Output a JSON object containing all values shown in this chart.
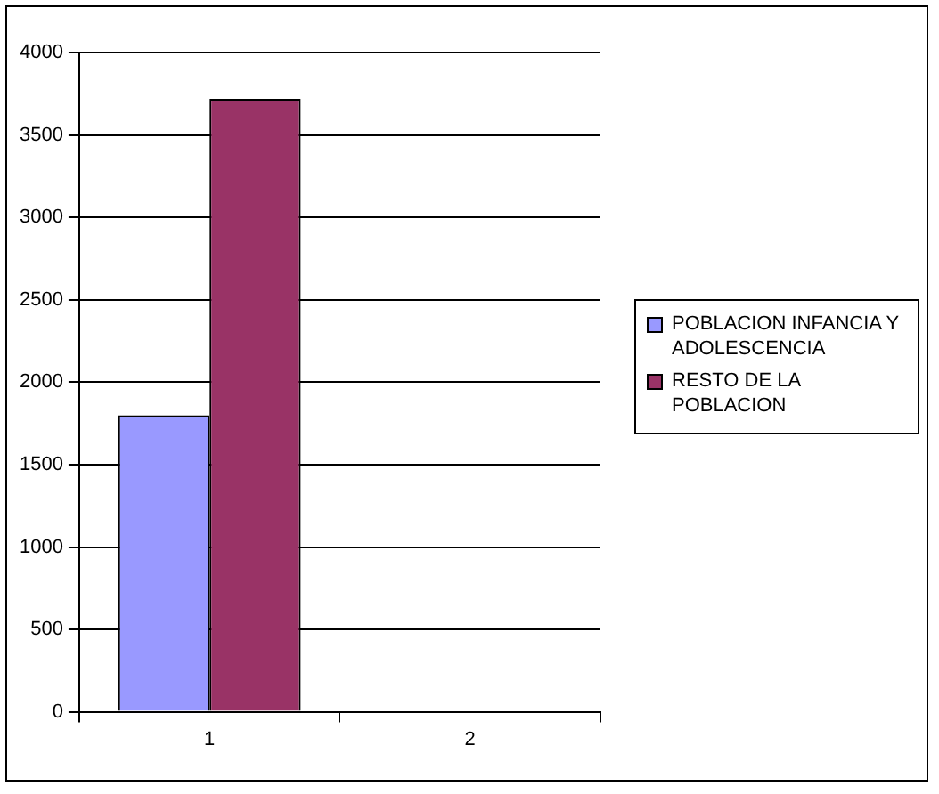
{
  "chart_data": {
    "type": "bar",
    "categories": [
      "1",
      "2"
    ],
    "series": [
      {
        "name": "POBLACION INFANCIA Y ADOLESCENCIA",
        "color": "#9999ff",
        "values": [
          1800,
          null
        ]
      },
      {
        "name": "RESTO DE LA POBLACION",
        "color": "#993366",
        "values": [
          3720,
          null
        ]
      }
    ],
    "ylim": [
      0,
      4000
    ],
    "yticks": [
      0,
      500,
      1000,
      1500,
      2000,
      2500,
      3000,
      3500,
      4000
    ],
    "grid": "y",
    "legend": "right"
  }
}
